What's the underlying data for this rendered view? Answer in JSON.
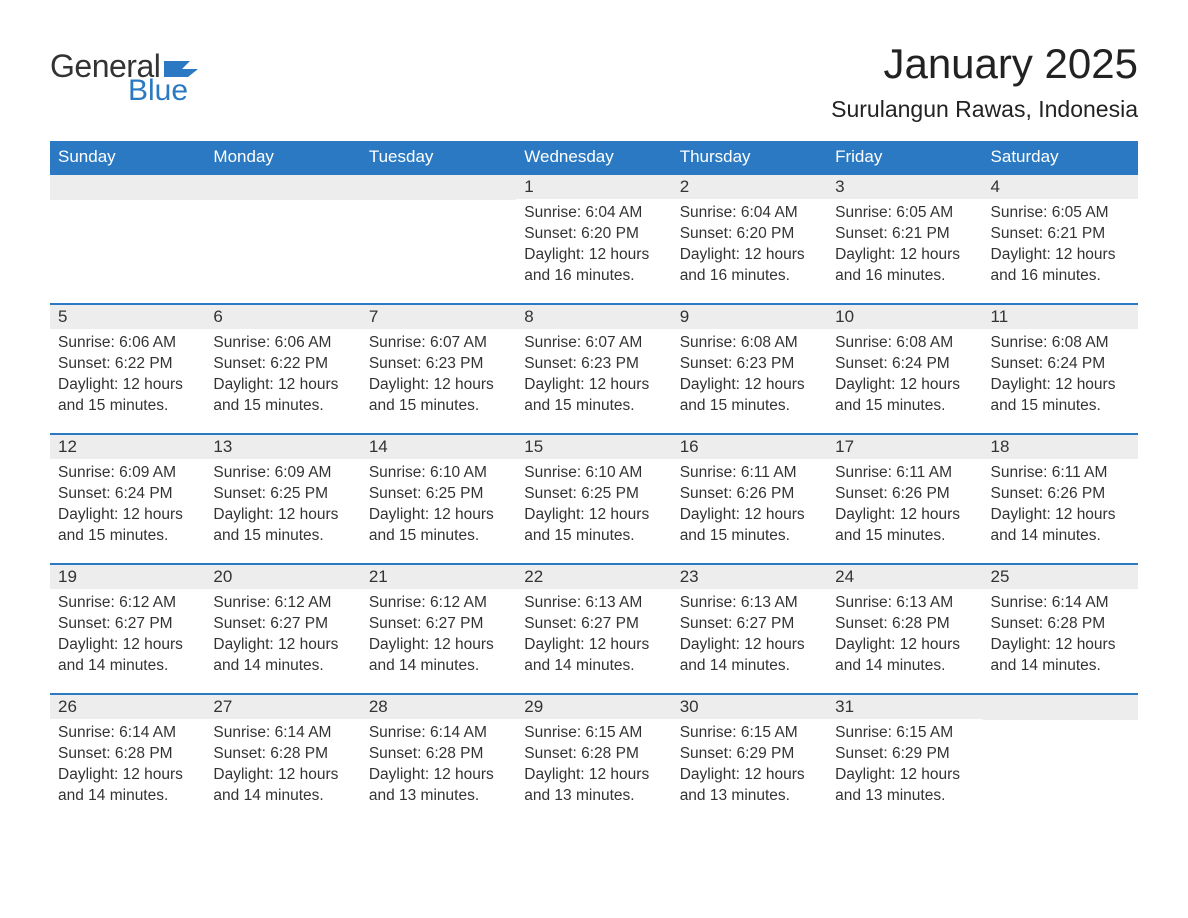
{
  "logo": {
    "word1": "General",
    "word2": "Blue"
  },
  "title": "January 2025",
  "location": "Surulangun Rawas, Indonesia",
  "colors": {
    "brand_blue": "#2b79c2",
    "header_bg": "#2b79c2",
    "daynum_bg": "#ededed",
    "text": "#333333",
    "background": "#ffffff"
  },
  "columns": [
    "Sunday",
    "Monday",
    "Tuesday",
    "Wednesday",
    "Thursday",
    "Friday",
    "Saturday"
  ],
  "weeks": [
    [
      {
        "n": "",
        "sr": "",
        "ss": "",
        "dl": ""
      },
      {
        "n": "",
        "sr": "",
        "ss": "",
        "dl": ""
      },
      {
        "n": "",
        "sr": "",
        "ss": "",
        "dl": ""
      },
      {
        "n": "1",
        "sr": "Sunrise: 6:04 AM",
        "ss": "Sunset: 6:20 PM",
        "dl": "Daylight: 12 hours and 16 minutes."
      },
      {
        "n": "2",
        "sr": "Sunrise: 6:04 AM",
        "ss": "Sunset: 6:20 PM",
        "dl": "Daylight: 12 hours and 16 minutes."
      },
      {
        "n": "3",
        "sr": "Sunrise: 6:05 AM",
        "ss": "Sunset: 6:21 PM",
        "dl": "Daylight: 12 hours and 16 minutes."
      },
      {
        "n": "4",
        "sr": "Sunrise: 6:05 AM",
        "ss": "Sunset: 6:21 PM",
        "dl": "Daylight: 12 hours and 16 minutes."
      }
    ],
    [
      {
        "n": "5",
        "sr": "Sunrise: 6:06 AM",
        "ss": "Sunset: 6:22 PM",
        "dl": "Daylight: 12 hours and 15 minutes."
      },
      {
        "n": "6",
        "sr": "Sunrise: 6:06 AM",
        "ss": "Sunset: 6:22 PM",
        "dl": "Daylight: 12 hours and 15 minutes."
      },
      {
        "n": "7",
        "sr": "Sunrise: 6:07 AM",
        "ss": "Sunset: 6:23 PM",
        "dl": "Daylight: 12 hours and 15 minutes."
      },
      {
        "n": "8",
        "sr": "Sunrise: 6:07 AM",
        "ss": "Sunset: 6:23 PM",
        "dl": "Daylight: 12 hours and 15 minutes."
      },
      {
        "n": "9",
        "sr": "Sunrise: 6:08 AM",
        "ss": "Sunset: 6:23 PM",
        "dl": "Daylight: 12 hours and 15 minutes."
      },
      {
        "n": "10",
        "sr": "Sunrise: 6:08 AM",
        "ss": "Sunset: 6:24 PM",
        "dl": "Daylight: 12 hours and 15 minutes."
      },
      {
        "n": "11",
        "sr": "Sunrise: 6:08 AM",
        "ss": "Sunset: 6:24 PM",
        "dl": "Daylight: 12 hours and 15 minutes."
      }
    ],
    [
      {
        "n": "12",
        "sr": "Sunrise: 6:09 AM",
        "ss": "Sunset: 6:24 PM",
        "dl": "Daylight: 12 hours and 15 minutes."
      },
      {
        "n": "13",
        "sr": "Sunrise: 6:09 AM",
        "ss": "Sunset: 6:25 PM",
        "dl": "Daylight: 12 hours and 15 minutes."
      },
      {
        "n": "14",
        "sr": "Sunrise: 6:10 AM",
        "ss": "Sunset: 6:25 PM",
        "dl": "Daylight: 12 hours and 15 minutes."
      },
      {
        "n": "15",
        "sr": "Sunrise: 6:10 AM",
        "ss": "Sunset: 6:25 PM",
        "dl": "Daylight: 12 hours and 15 minutes."
      },
      {
        "n": "16",
        "sr": "Sunrise: 6:11 AM",
        "ss": "Sunset: 6:26 PM",
        "dl": "Daylight: 12 hours and 15 minutes."
      },
      {
        "n": "17",
        "sr": "Sunrise: 6:11 AM",
        "ss": "Sunset: 6:26 PM",
        "dl": "Daylight: 12 hours and 15 minutes."
      },
      {
        "n": "18",
        "sr": "Sunrise: 6:11 AM",
        "ss": "Sunset: 6:26 PM",
        "dl": "Daylight: 12 hours and 14 minutes."
      }
    ],
    [
      {
        "n": "19",
        "sr": "Sunrise: 6:12 AM",
        "ss": "Sunset: 6:27 PM",
        "dl": "Daylight: 12 hours and 14 minutes."
      },
      {
        "n": "20",
        "sr": "Sunrise: 6:12 AM",
        "ss": "Sunset: 6:27 PM",
        "dl": "Daylight: 12 hours and 14 minutes."
      },
      {
        "n": "21",
        "sr": "Sunrise: 6:12 AM",
        "ss": "Sunset: 6:27 PM",
        "dl": "Daylight: 12 hours and 14 minutes."
      },
      {
        "n": "22",
        "sr": "Sunrise: 6:13 AM",
        "ss": "Sunset: 6:27 PM",
        "dl": "Daylight: 12 hours and 14 minutes."
      },
      {
        "n": "23",
        "sr": "Sunrise: 6:13 AM",
        "ss": "Sunset: 6:27 PM",
        "dl": "Daylight: 12 hours and 14 minutes."
      },
      {
        "n": "24",
        "sr": "Sunrise: 6:13 AM",
        "ss": "Sunset: 6:28 PM",
        "dl": "Daylight: 12 hours and 14 minutes."
      },
      {
        "n": "25",
        "sr": "Sunrise: 6:14 AM",
        "ss": "Sunset: 6:28 PM",
        "dl": "Daylight: 12 hours and 14 minutes."
      }
    ],
    [
      {
        "n": "26",
        "sr": "Sunrise: 6:14 AM",
        "ss": "Sunset: 6:28 PM",
        "dl": "Daylight: 12 hours and 14 minutes."
      },
      {
        "n": "27",
        "sr": "Sunrise: 6:14 AM",
        "ss": "Sunset: 6:28 PM",
        "dl": "Daylight: 12 hours and 14 minutes."
      },
      {
        "n": "28",
        "sr": "Sunrise: 6:14 AM",
        "ss": "Sunset: 6:28 PM",
        "dl": "Daylight: 12 hours and 13 minutes."
      },
      {
        "n": "29",
        "sr": "Sunrise: 6:15 AM",
        "ss": "Sunset: 6:28 PM",
        "dl": "Daylight: 12 hours and 13 minutes."
      },
      {
        "n": "30",
        "sr": "Sunrise: 6:15 AM",
        "ss": "Sunset: 6:29 PM",
        "dl": "Daylight: 12 hours and 13 minutes."
      },
      {
        "n": "31",
        "sr": "Sunrise: 6:15 AM",
        "ss": "Sunset: 6:29 PM",
        "dl": "Daylight: 12 hours and 13 minutes."
      },
      {
        "n": "",
        "sr": "",
        "ss": "",
        "dl": ""
      }
    ]
  ]
}
